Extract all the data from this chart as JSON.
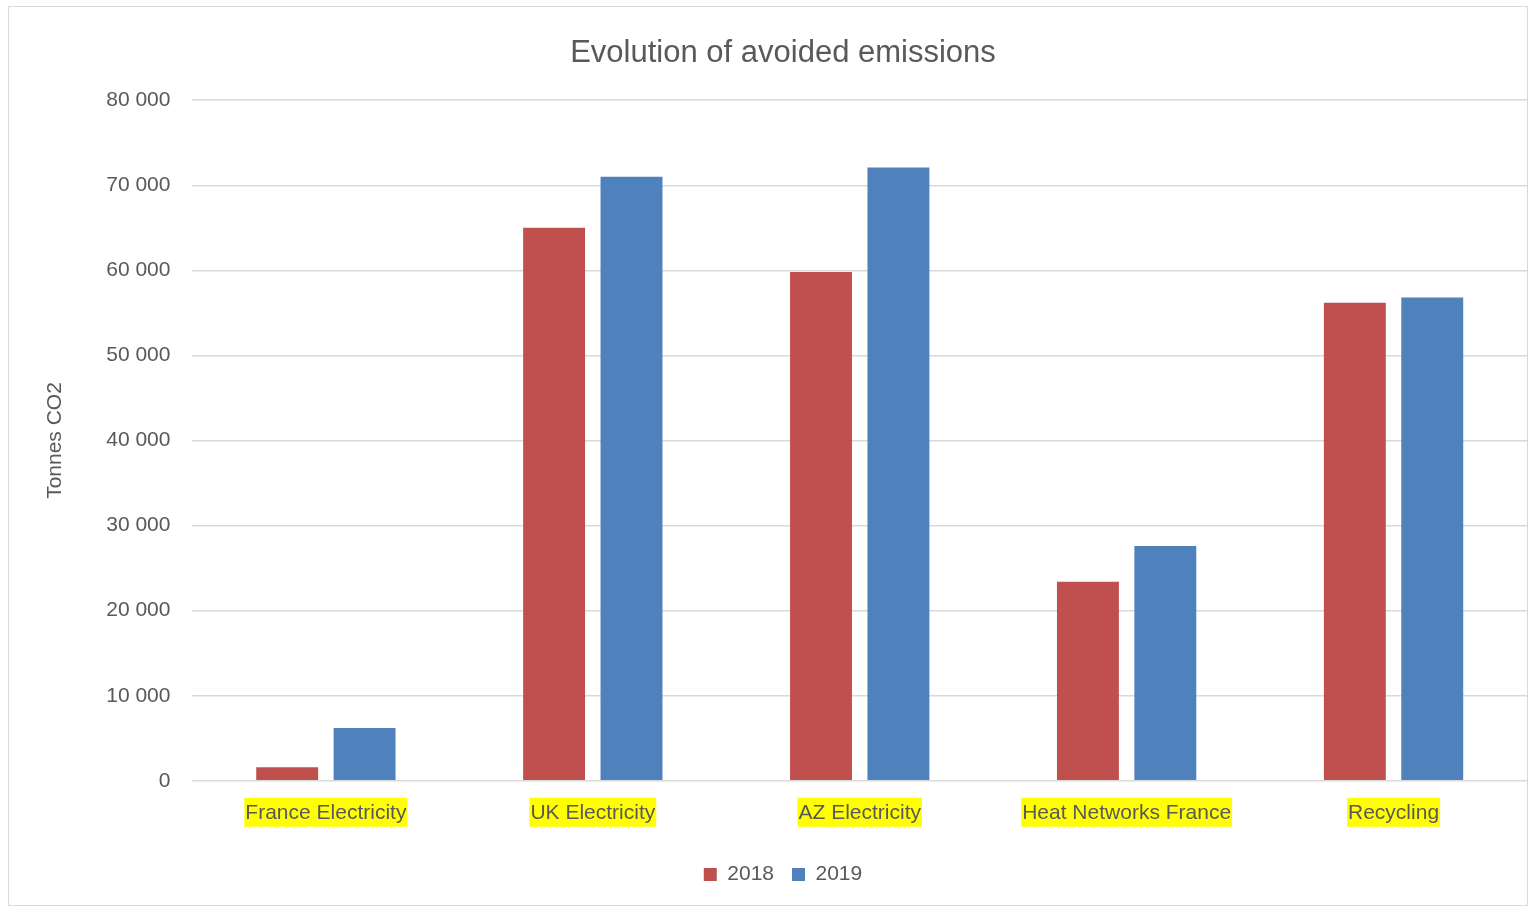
{
  "chart_data": {
    "type": "bar",
    "title": "Evolution of avoided emissions",
    "ylabel": "Tonnes CO2",
    "categories": [
      "France Electricity",
      "UK Electricity",
      "AZ Electricity",
      "Heat Networks France",
      "Recycling"
    ],
    "series": [
      {
        "name": "2018",
        "color": "#c0504d",
        "values": [
          1600,
          65000,
          59800,
          23400,
          56200
        ]
      },
      {
        "name": "2019",
        "color": "#4f81bd",
        "values": [
          6200,
          71000,
          72100,
          27600,
          56800
        ]
      }
    ],
    "ylim": [
      0,
      80000
    ],
    "yticks": [
      {
        "value": 0,
        "label": "0"
      },
      {
        "value": 10000,
        "label": "10 000"
      },
      {
        "value": 20000,
        "label": "20 000"
      },
      {
        "value": 30000,
        "label": "30 000"
      },
      {
        "value": 40000,
        "label": "40 000"
      },
      {
        "value": 50000,
        "label": "50 000"
      },
      {
        "value": 60000,
        "label": "60 000"
      },
      {
        "value": 70000,
        "label": "70 000"
      },
      {
        "value": 80000,
        "label": "80 000"
      }
    ],
    "grid": "y",
    "legend": "bottom"
  }
}
